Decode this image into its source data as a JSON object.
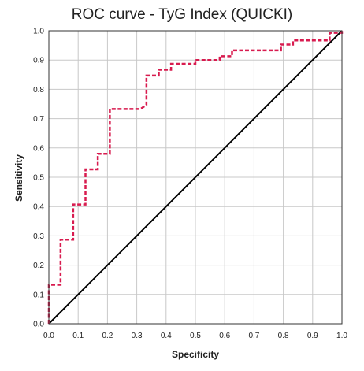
{
  "chart_data": {
    "type": "line",
    "title": "ROC curve - TyG Index (QUICKI)",
    "xlabel": "Specificity",
    "ylabel": "Sensitivity",
    "xlim": [
      0.0,
      1.0
    ],
    "ylim": [
      0.0,
      1.0
    ],
    "x_ticks": [
      "0.0",
      "0.1",
      "0.2",
      "0.3",
      "0.4",
      "0.5",
      "0.6",
      "0.7",
      "0.8",
      "0.9",
      "1.0"
    ],
    "y_ticks": [
      "0.0",
      "0.1",
      "0.2",
      "0.3",
      "0.4",
      "0.5",
      "0.6",
      "0.7",
      "0.8",
      "0.9",
      "1.0"
    ],
    "grid": true,
    "legend": "none",
    "series": [
      {
        "style": "dashed",
        "color": "#d81b4f",
        "points": [
          [
            0.0,
            0.0
          ],
          [
            0.0,
            0.133
          ],
          [
            0.04,
            0.133
          ],
          [
            0.04,
            0.287
          ],
          [
            0.083,
            0.287
          ],
          [
            0.083,
            0.407
          ],
          [
            0.125,
            0.407
          ],
          [
            0.125,
            0.527
          ],
          [
            0.167,
            0.527
          ],
          [
            0.167,
            0.58
          ],
          [
            0.208,
            0.58
          ],
          [
            0.208,
            0.733
          ],
          [
            0.313,
            0.733
          ],
          [
            0.333,
            0.747
          ],
          [
            0.333,
            0.847
          ],
          [
            0.375,
            0.847
          ],
          [
            0.375,
            0.867
          ],
          [
            0.417,
            0.867
          ],
          [
            0.417,
            0.887
          ],
          [
            0.5,
            0.887
          ],
          [
            0.5,
            0.9
          ],
          [
            0.583,
            0.9
          ],
          [
            0.583,
            0.913
          ],
          [
            0.625,
            0.913
          ],
          [
            0.625,
            0.933
          ],
          [
            0.792,
            0.933
          ],
          [
            0.792,
            0.953
          ],
          [
            0.833,
            0.953
          ],
          [
            0.833,
            0.967
          ],
          [
            0.958,
            0.967
          ],
          [
            0.958,
            0.993
          ],
          [
            1.0,
            0.993
          ],
          [
            1.0,
            1.0
          ]
        ]
      },
      {
        "style": "solid",
        "color": "#000000",
        "points": [
          [
            0.0,
            0.0
          ],
          [
            1.0,
            1.0
          ]
        ]
      }
    ]
  }
}
